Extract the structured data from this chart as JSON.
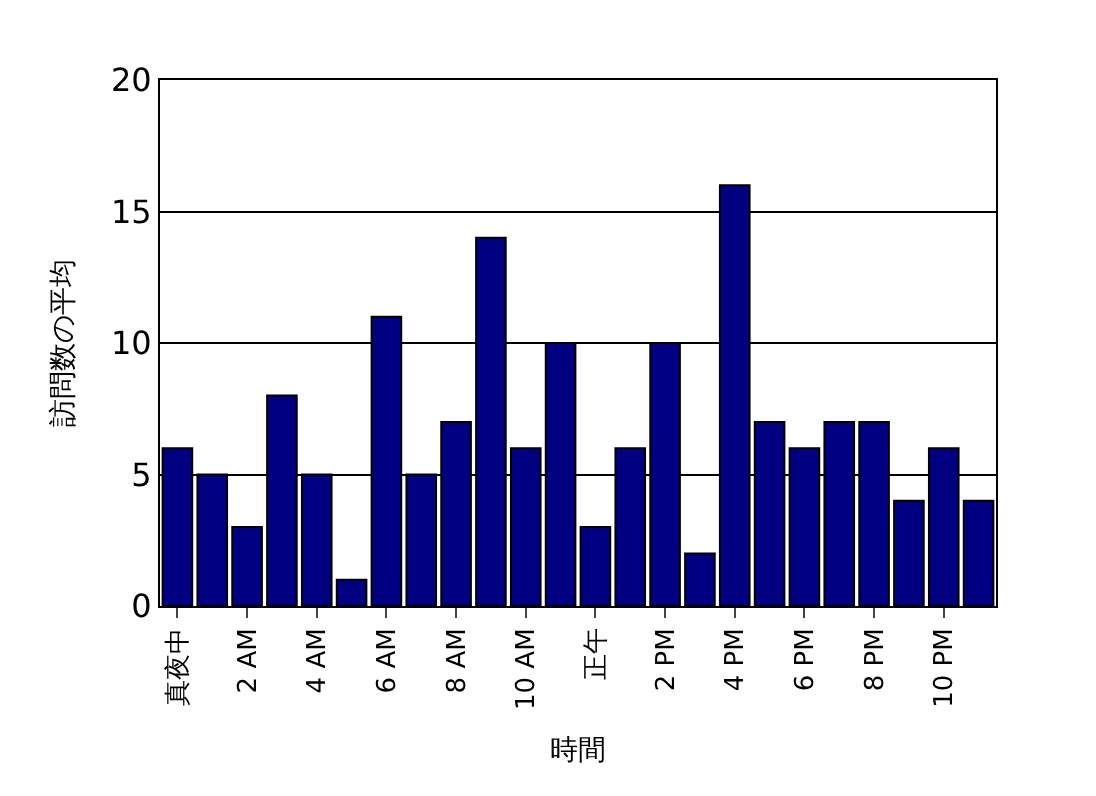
{
  "chart_data": {
    "type": "bar",
    "xlabel": "時間",
    "ylabel": "訪問数の平均",
    "categories": [
      "真夜中",
      null,
      "2 AM",
      null,
      "4 AM",
      null,
      "6 AM",
      null,
      "8 AM",
      null,
      "10 AM",
      null,
      "正午",
      null,
      "2 PM",
      null,
      "4 PM",
      null,
      "6 PM",
      null,
      "8 PM",
      null,
      "10 PM",
      null
    ],
    "values": [
      6,
      5,
      3,
      8,
      5,
      1,
      11,
      5,
      7,
      14,
      6,
      10,
      3,
      6,
      10,
      2,
      16,
      7,
      6,
      7,
      7,
      4,
      6,
      4
    ],
    "color": "#000080",
    "ylim": [
      0,
      20
    ],
    "yticks": [
      0,
      5,
      10,
      15,
      20
    ],
    "grid": "y"
  }
}
